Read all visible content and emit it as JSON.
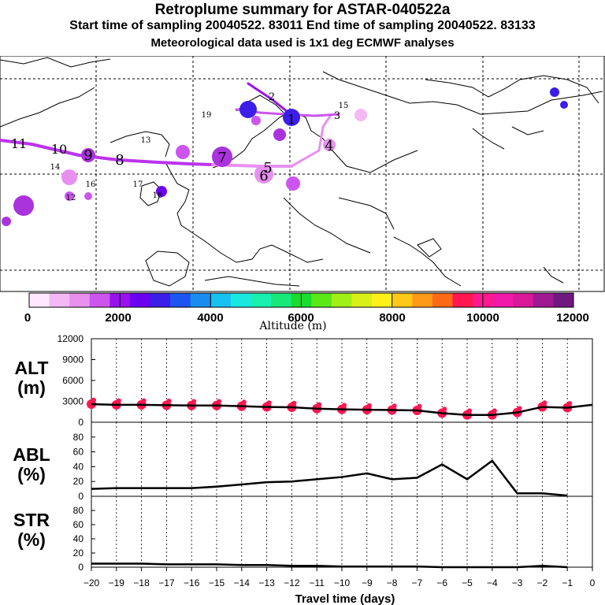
{
  "header": {
    "title": "Retroplume summary for ASTAR-040522a",
    "sampling": "Start time of sampling 20040522. 83011     End time of sampling 20040522. 83133",
    "met": "Meteorological data used is 1x1 deg ECMWF analyses"
  },
  "colorbar": {
    "title": "Altitude (m)",
    "tick_labels": [
      "0",
      "2000",
      "4000",
      "6000",
      "8000",
      "10000",
      "12000"
    ],
    "colors": [
      "#ffe8ff",
      "#f4b8f4",
      "#e890f0",
      "#cc55ee",
      "#9911ee",
      "#6a00ee",
      "#3b1ee8",
      "#1c55f0",
      "#1a8cf0",
      "#18c2f0",
      "#18e8e0",
      "#18f0b0",
      "#18e878",
      "#18dc30",
      "#5ae818",
      "#a0f018",
      "#d8f018",
      "#fff018",
      "#ffc818",
      "#ff9a18",
      "#ff6a18",
      "#ff1850",
      "#ff1890",
      "#f018a8",
      "#d81898",
      "#a01890",
      "#701880"
    ]
  },
  "map": {
    "labels": [
      {
        "t": "11",
        "c": "#aa33dd"
      },
      {
        "t": "10",
        "c": "#cc55ee"
      },
      {
        "t": "9",
        "c": "#cc55ee"
      },
      {
        "t": "8",
        "c": "#cc55ee"
      },
      {
        "t": "7",
        "c": "#cc55ee"
      },
      {
        "t": "6",
        "c": "#cc55ee"
      },
      {
        "t": "5",
        "c": "#cc55ee"
      },
      {
        "t": "4",
        "c": "#e890f0"
      },
      {
        "t": "3",
        "c": "#3b1ee8"
      },
      {
        "t": "2",
        "c": "#3b1ee8"
      },
      {
        "t": "1",
        "c": "#3b1ee8"
      },
      {
        "t": "13",
        "c": "#cc55ee"
      },
      {
        "t": "14",
        "c": "#aa33dd"
      },
      {
        "t": "15",
        "c": "#cc55ee"
      },
      {
        "t": "16",
        "c": "#cc55ee"
      },
      {
        "t": "17",
        "c": "#9911ee"
      },
      {
        "t": "18",
        "c": "#9911ee"
      },
      {
        "t": "19",
        "c": "#9911ee"
      },
      {
        "t": "12",
        "c": "#cc55ee"
      }
    ]
  },
  "chart_data": [
    {
      "type": "line",
      "title": "ALT (m)",
      "panel_label": "ALT\n(m)",
      "xlabel": "Travel time (days)",
      "x": [
        -20,
        -19,
        -18,
        -17,
        -16,
        -15,
        -14,
        -13,
        -12,
        -11,
        -10,
        -9,
        -8,
        -7,
        -6,
        -5,
        -4,
        -3,
        -2,
        -1,
        0
      ],
      "values": [
        2600,
        2500,
        2500,
        2450,
        2400,
        2400,
        2300,
        2200,
        2150,
        1950,
        1850,
        1800,
        1750,
        1700,
        1300,
        1050,
        1050,
        1400,
        2200,
        2100,
        2500
      ],
      "ylim": [
        0,
        12000
      ],
      "yticks": [
        "0",
        "3000",
        "6000",
        "9000",
        "12000"
      ]
    },
    {
      "type": "line",
      "title": "ABL (%)",
      "panel_label": "ABL\n(%)",
      "x": [
        -20,
        -19,
        -18,
        -17,
        -16,
        -15,
        -14,
        -13,
        -12,
        -11,
        -10,
        -9,
        -8,
        -7,
        -6,
        -5,
        -4,
        -3,
        -2,
        -1
      ],
      "values": [
        10,
        11,
        11,
        11,
        11,
        13,
        16,
        19,
        20,
        23,
        26,
        31,
        23,
        25,
        43,
        23,
        48,
        4,
        4,
        1
      ],
      "ylim": [
        0,
        100
      ],
      "yticks": [
        "0",
        "20",
        "40",
        "60",
        "80"
      ]
    },
    {
      "type": "line",
      "title": "STR (%)",
      "panel_label": "STR\n(%)",
      "x": [
        -20,
        -19,
        -18,
        -17,
        -16,
        -15,
        -14,
        -13,
        -12,
        -11,
        -10,
        -9,
        -8,
        -7,
        -6,
        -5,
        -4,
        -3,
        -2,
        -1
      ],
      "values": [
        5,
        5,
        5,
        4,
        4,
        4,
        3,
        3,
        2,
        2,
        1,
        1,
        1,
        1,
        0,
        0,
        0,
        0,
        2,
        0
      ],
      "ylim": [
        0,
        100
      ],
      "yticks": [
        "0",
        "20",
        "40",
        "60",
        "80"
      ],
      "xtick_labels": [
        "−20",
        "−19",
        "−18",
        "−17",
        "−16",
        "−15",
        "−14",
        "−13",
        "−12",
        "−11",
        "−10",
        "−9",
        "−8",
        "−7",
        "−6",
        "−5",
        "−4",
        "−3",
        "−2",
        "−1",
        "0"
      ]
    }
  ],
  "panel_labels": {
    "alt": [
      "ALT",
      "(m)"
    ],
    "abl": [
      "ABL",
      "(%)"
    ],
    "str": [
      "STR",
      "(%)"
    ]
  }
}
